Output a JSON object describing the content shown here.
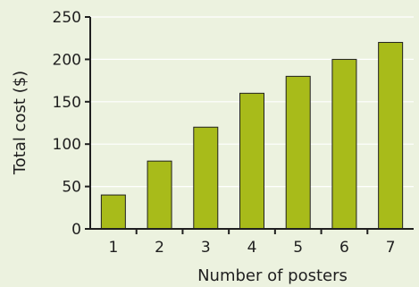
{
  "chart_data": {
    "type": "bar",
    "title": "",
    "xlabel": "Number of posters",
    "ylabel": "Total cost ($)",
    "categories": [
      "1",
      "2",
      "3",
      "4",
      "5",
      "6",
      "7"
    ],
    "values": [
      40,
      80,
      120,
      160,
      180,
      200,
      220
    ],
    "ylim": [
      0,
      250
    ],
    "yticks": [
      "0",
      "50",
      "100",
      "150",
      "200",
      "250"
    ],
    "grid": true,
    "legend": "none",
    "colors": {
      "background": "#ecf2df",
      "bar_fill": "#a8bb1a",
      "bar_stroke": "#1f1f1f",
      "grid": "#ffffff",
      "axis": "#1f1f1f"
    }
  }
}
